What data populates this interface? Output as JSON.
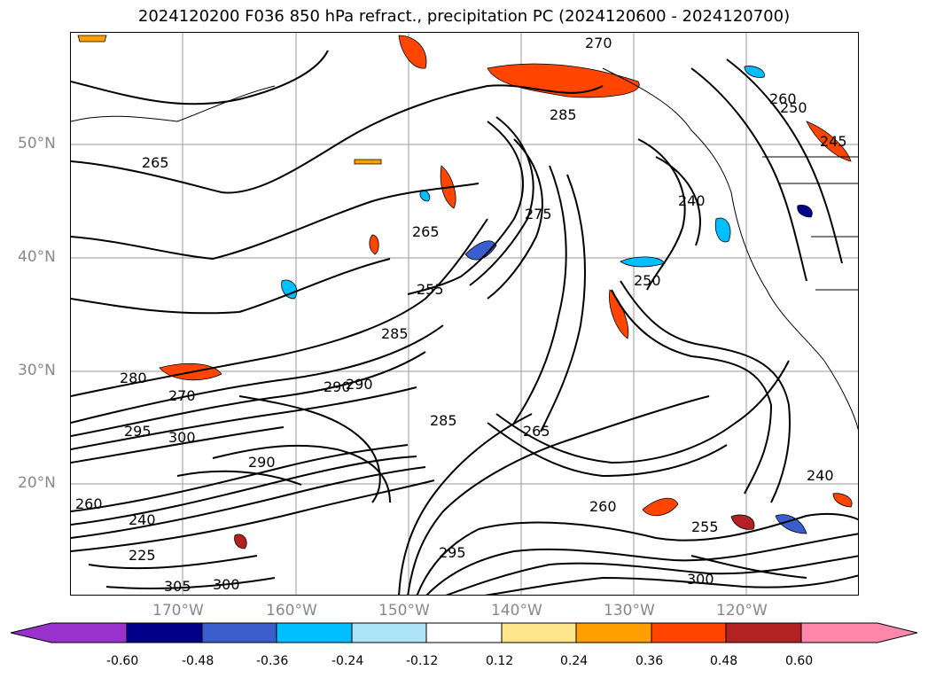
{
  "title": "2024120200 F036 850 hPa refract., precipitation PC (2024120600 - 2024120700)",
  "lat_labels": [
    "50°N",
    "40°N",
    "30°N",
    "20°N"
  ],
  "lon_labels": [
    "170°W",
    "160°W",
    "150°W",
    "140°W",
    "130°W",
    "120°W"
  ],
  "colorbar": {
    "tick_labels": [
      "-0.60",
      "-0.48",
      "-0.36",
      "-0.24",
      "-0.12",
      "0.12",
      "0.24",
      "0.36",
      "0.48",
      "0.60"
    ],
    "colors": [
      "#9932cc",
      "#00008b",
      "#3a5fcd",
      "#00bfff",
      "#aee4f7",
      "#ffffff",
      "#ffe68c",
      "#ff9f00",
      "#ff4500",
      "#b22222",
      "#ff88aa"
    ]
  },
  "contour_labels": [
    "265",
    "270",
    "285",
    "260",
    "250",
    "245",
    "240",
    "275",
    "255",
    "250",
    "265",
    "280",
    "270",
    "285",
    "290",
    "300",
    "295",
    "290",
    "260",
    "240",
    "225",
    "305",
    "300",
    "285",
    "290",
    "295",
    "260",
    "240",
    "255",
    "300",
    "265"
  ]
}
